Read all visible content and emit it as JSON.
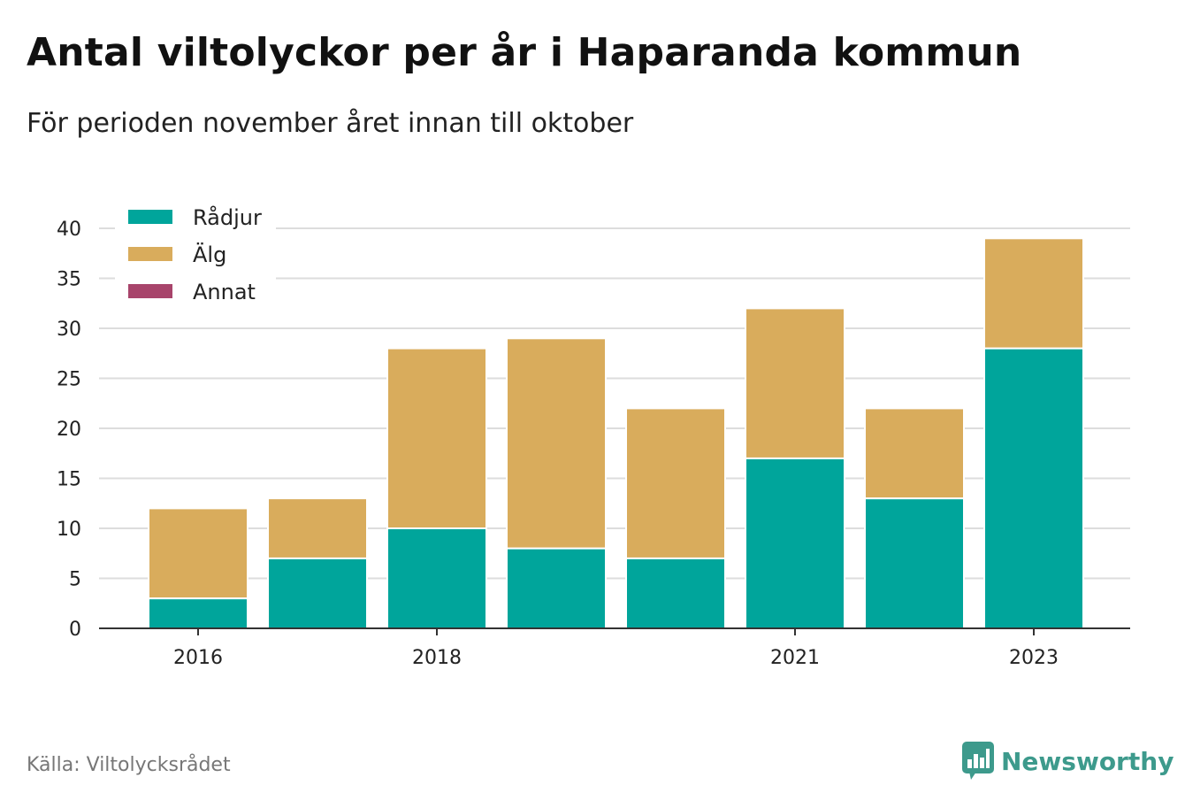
{
  "title": "Antal viltolyckor per år i Haparanda kommun",
  "subtitle": "För perioden november året innan till oktober",
  "source": "Källa: Viltolycksrådet",
  "brand": {
    "name": "Newsworthy",
    "icon": "bar-chart-speech-bubble-icon",
    "color": "#3d9a8c"
  },
  "chart_data": {
    "type": "bar",
    "stacked": true,
    "categories": [
      "2016",
      "2017",
      "2018",
      "2019",
      "2020",
      "2021",
      "2022",
      "2023"
    ],
    "x_tick_labels": [
      "2016",
      "",
      "2018",
      "",
      "",
      "2021",
      "",
      "2023"
    ],
    "series": [
      {
        "name": "Rådjur",
        "color": "#00a59b",
        "values": [
          3,
          7,
          10,
          8,
          7,
          17,
          13,
          28
        ]
      },
      {
        "name": "Älg",
        "color": "#d9ac5c",
        "values": [
          9,
          6,
          18,
          21,
          15,
          15,
          9,
          11
        ]
      },
      {
        "name": "Annat",
        "color": "#a8446b",
        "values": [
          0,
          0,
          0,
          0,
          0,
          0,
          0,
          0
        ]
      }
    ],
    "ylim": [
      0,
      40
    ],
    "yticks": [
      0,
      5,
      10,
      15,
      20,
      25,
      30,
      35,
      40
    ],
    "grid": true,
    "legend_position": "top-left"
  }
}
